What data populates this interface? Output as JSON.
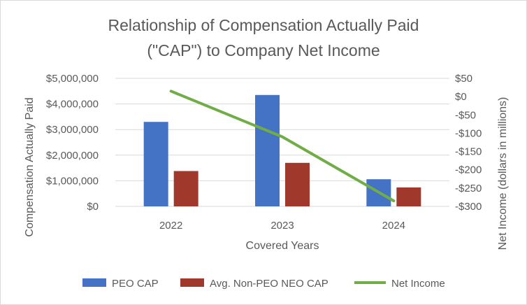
{
  "chart_data": {
    "type": "bar",
    "title": "Relationship of Compensation Actually Paid (\"CAP\") to Company Net Income",
    "title_lines": [
      "Relationship of Compensation Actually Paid",
      "(\"CAP\") to Company Net Income"
    ],
    "xlabel": "Covered Years",
    "ylabel": "Compensation Actually Paid",
    "y2label": "Net Income (dollars in millions)",
    "categories": [
      "2022",
      "2023",
      "2024"
    ],
    "ylim": [
      0,
      5000000
    ],
    "y_ticks": [
      0,
      1000000,
      2000000,
      3000000,
      4000000,
      5000000
    ],
    "y_tick_labels": [
      "$0",
      "$1,000,000",
      "$2,000,000",
      "$3,000,000",
      "$4,000,000",
      "$5,000,000"
    ],
    "y2lim": [
      -300,
      50
    ],
    "y2_ticks": [
      50,
      0,
      -50,
      -100,
      -150,
      -200,
      -250,
      -300
    ],
    "y2_tick_labels": [
      "$50",
      "$0",
      "-$50",
      "-$100",
      "-$150",
      "-$200",
      "-$250",
      "-$300"
    ],
    "series": [
      {
        "name": "PEO CAP",
        "kind": "bar",
        "axis": "left",
        "color": "#4472C4",
        "values": [
          3300000,
          4350000,
          1060000
        ]
      },
      {
        "name": "Avg. Non-PEO NEO CAP",
        "kind": "bar",
        "axis": "left",
        "color": "#A0382B",
        "values": [
          1380000,
          1700000,
          740000
        ]
      },
      {
        "name": "Net Income",
        "kind": "line",
        "axis": "right",
        "color": "#70AD47",
        "values": [
          15,
          -110,
          -285
        ]
      }
    ],
    "legend_position": "bottom"
  }
}
